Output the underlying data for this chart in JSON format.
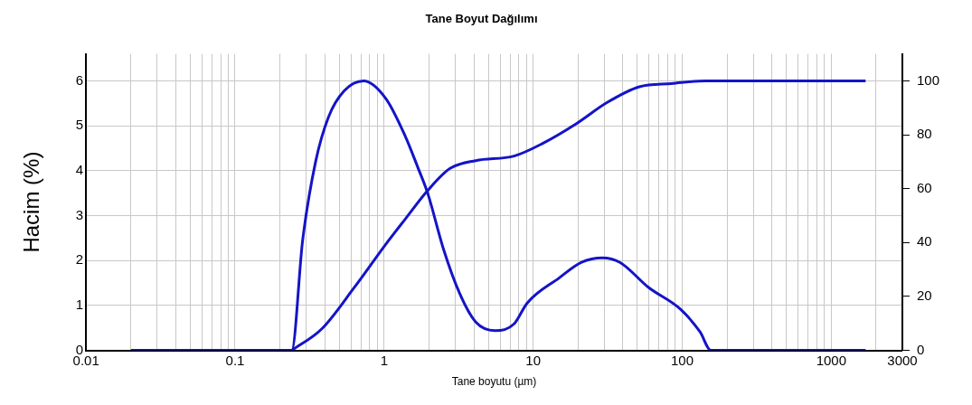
{
  "chart_data": {
    "type": "line",
    "title": "Tane Boyut Dağılımı",
    "xlabel": "Tane boyutu (µm)",
    "ylabel": "Hacim (%)",
    "log": "x",
    "grid": true,
    "legend": false,
    "marker": "none",
    "line_style": "solid",
    "xlim": [
      0.01,
      3000
    ],
    "xticks": [
      0.01,
      {
        "value": 0.02,
        "label": null
      },
      {
        "value": 0.03,
        "label": null
      },
      {
        "value": 0.04,
        "label": null
      },
      {
        "value": 0.05,
        "label": null
      },
      {
        "value": 0.06,
        "label": null
      },
      {
        "value": 0.07,
        "label": null
      },
      {
        "value": 0.08,
        "label": null
      },
      {
        "value": 0.09,
        "label": null
      },
      0.1,
      {
        "value": 0.2,
        "label": null
      },
      {
        "value": 0.3,
        "label": null
      },
      {
        "value": 0.4,
        "label": null
      },
      {
        "value": 0.5,
        "label": null
      },
      {
        "value": 0.6,
        "label": null
      },
      {
        "value": 0.7,
        "label": null
      },
      {
        "value": 0.8,
        "label": null
      },
      {
        "value": 0.9,
        "label": null
      },
      1,
      {
        "value": 2,
        "label": null
      },
      {
        "value": 3,
        "label": null
      },
      {
        "value": 4,
        "label": null
      },
      {
        "value": 5,
        "label": null
      },
      {
        "value": 6,
        "label": null
      },
      {
        "value": 7,
        "label": null
      },
      {
        "value": 8,
        "label": null
      },
      {
        "value": 9,
        "label": null
      },
      10,
      {
        "value": 20,
        "label": null
      },
      {
        "value": 30,
        "label": null
      },
      {
        "value": 40,
        "label": null
      },
      {
        "value": 50,
        "label": null
      },
      {
        "value": 60,
        "label": null
      },
      {
        "value": 70,
        "label": null
      },
      {
        "value": 80,
        "label": null
      },
      {
        "value": 90,
        "label": null
      },
      100,
      {
        "value": 200,
        "label": null
      },
      {
        "value": 300,
        "label": null
      },
      {
        "value": 400,
        "label": null
      },
      {
        "value": 500,
        "label": null
      },
      {
        "value": 600,
        "label": null
      },
      {
        "value": 700,
        "label": null
      },
      {
        "value": 800,
        "label": null
      },
      {
        "value": 900,
        "label": null
      },
      1000,
      {
        "value": 2000,
        "label": null
      },
      3000
    ],
    "ylim": [
      0,
      6.6
    ],
    "yticks": [
      0,
      1,
      2,
      3,
      4,
      5,
      6
    ],
    "y2lim": [
      0,
      110
    ],
    "y2ticks": [
      0,
      20,
      40,
      60,
      80,
      100
    ],
    "series": [
      {
        "color": "#1414c8",
        "x": [
          0.02,
          0.24,
          0.284,
          0.347,
          0.423,
          0.541,
          0.729,
          1.03,
          1.39,
          1.69,
          1.96,
          2.51,
          3.22,
          4.12,
          5.55,
          7.45,
          9.1,
          14.9,
          21.1,
          29.1,
          38.2,
          59.5,
          97.9,
          131.8,
          156,
          1700
        ],
        "values": [
          0,
          0,
          2.45,
          4.2,
          5.19,
          5.78,
          6.0,
          5.6,
          4.76,
          4.06,
          3.5,
          2.24,
          1.26,
          0.63,
          0.44,
          0.59,
          1.05,
          1.61,
          1.96,
          2.06,
          1.96,
          1.4,
          0.91,
          0.41,
          0,
          0
        ]
      },
      {
        "color": "#1414c8",
        "axis": "y2",
        "x": [
          0.24,
          0.382,
          0.628,
          1.03,
          1.39,
          1.96,
          2.77,
          4.12,
          7.45,
          11.6,
          19.1,
          31.4,
          51.6,
          84.8,
          145,
          1700
        ],
        "values": [
          0,
          8,
          23.2,
          39.5,
          48.8,
          59.3,
          67.5,
          70.4,
          72.1,
          76.8,
          83.8,
          92,
          97.8,
          99,
          100,
          100
        ]
      }
    ]
  }
}
